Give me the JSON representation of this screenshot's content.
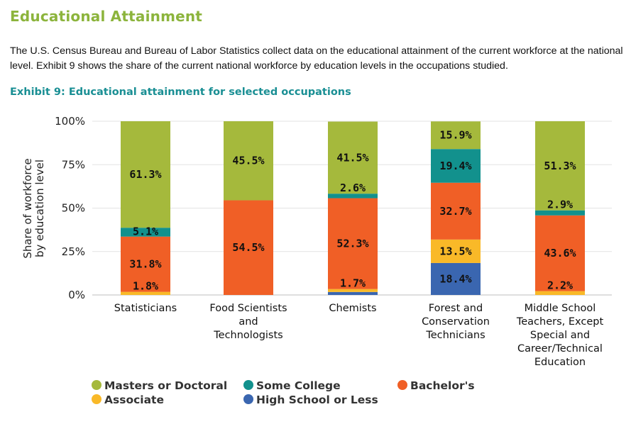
{
  "section_title": "Educational Attainment",
  "intro_text": "The U.S. Census Bureau and Bureau of Labor Statistics collect data on the educational attainment of the current workforce at the national level. Exhibit 9 shows the share of the current national workforce by education levels in the occupations studied.",
  "exhibit_title": "Exhibit 9: Educational attainment for selected occupations",
  "chart_data": {
    "type": "bar",
    "stacked": true,
    "ylabel": "Share of workforce by education level",
    "ylim": [
      0,
      100
    ],
    "yticks": [
      "0%",
      "25%",
      "50%",
      "75%",
      "100%"
    ],
    "categories": [
      "Statisticians",
      "Food Scientists and Technologists",
      "Chemists",
      "Forest and Conservation Technicians",
      "Middle School Teachers, Except Special and Career/Technical Education"
    ],
    "category_lines": [
      [
        "Statisticians"
      ],
      [
        "Food Scientists",
        "and",
        "Technologists"
      ],
      [
        "Chemists"
      ],
      [
        "Forest and",
        "Conservation",
        "Technicians"
      ],
      [
        "Middle School",
        "Teachers, Except",
        "Special and",
        "Career/Technical",
        "Education"
      ]
    ],
    "series": [
      {
        "name": "High School or Less",
        "color": "#3a66b0",
        "values": [
          0,
          0,
          1.7,
          18.4,
          0
        ],
        "labels": [
          "",
          "",
          "",
          "18.4%",
          ""
        ]
      },
      {
        "name": "Associate",
        "color": "#f9b928",
        "values": [
          1.8,
          0,
          1.7,
          13.5,
          2.2
        ],
        "labels": [
          "1.8%",
          "",
          "1.7%",
          "13.5%",
          "2.2%"
        ]
      },
      {
        "name": "Bachelor's",
        "color": "#f05f26",
        "values": [
          31.8,
          54.5,
          52.3,
          32.7,
          43.6
        ],
        "labels": [
          "31.8%",
          "54.5%",
          "52.3%",
          "32.7%",
          "43.6%"
        ]
      },
      {
        "name": "Some College",
        "color": "#12918d",
        "values": [
          5.1,
          0,
          2.6,
          19.4,
          2.9
        ],
        "labels": [
          "5.1%",
          "",
          "2.6%",
          "19.4%",
          "2.9%"
        ]
      },
      {
        "name": "Masters or Doctoral",
        "color": "#a5b93c",
        "values": [
          61.3,
          45.5,
          41.5,
          15.9,
          51.3
        ],
        "labels": [
          "61.3%",
          "45.5%",
          "41.5%",
          "15.9%",
          "51.3%"
        ]
      }
    ],
    "legend": {
      "placement": "bottom",
      "order": [
        "Masters or Doctoral",
        "Some College",
        "Bachelor's",
        "Associate",
        "High School or Less"
      ]
    },
    "grid": true
  }
}
